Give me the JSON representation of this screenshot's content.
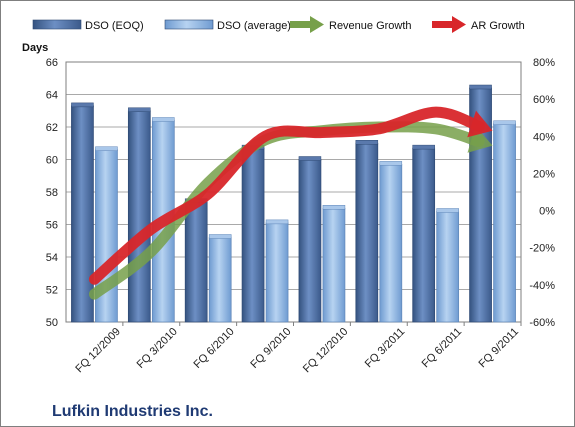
{
  "chart_data": {
    "type": "bar",
    "title": "",
    "footer_title": "Lufkin Industries Inc.",
    "y_left_label": "Days",
    "y_left_ticks": [
      "50",
      "52",
      "54",
      "56",
      "58",
      "60",
      "62",
      "64",
      "66"
    ],
    "y_right_ticks": [
      "-60%",
      "-40%",
      "-20%",
      "0%",
      "20%",
      "40%",
      "60%",
      "80%"
    ],
    "ylim_left": [
      50,
      66
    ],
    "ylim_right": [
      -0.6,
      0.8
    ],
    "categories": [
      "FQ 12/2009",
      "FQ 3/2010",
      "FQ 6/2010",
      "FQ 9/2010",
      "FQ 12/2010",
      "FQ 3/2011",
      "FQ 6/2011",
      "FQ 9/2011"
    ],
    "bar_series": [
      {
        "name": "DSO (EOQ)",
        "values": [
          63.3,
          63.0,
          57.4,
          60.7,
          60.0,
          61.0,
          60.7,
          64.4
        ],
        "color": "#4f6fa2"
      },
      {
        "name": "DSO (average)",
        "values": [
          60.6,
          62.4,
          55.2,
          56.1,
          57.0,
          59.7,
          56.8,
          62.2
        ],
        "color": "#8db4e2"
      }
    ],
    "line_series": [
      {
        "name": "Revenue Growth",
        "values": [
          -0.45,
          -0.22,
          0.15,
          0.38,
          0.43,
          0.45,
          0.44,
          0.35
        ],
        "color": "#77a04a",
        "arrow": true
      },
      {
        "name": "AR Growth",
        "values": [
          -0.37,
          -0.1,
          0.09,
          0.4,
          0.42,
          0.44,
          0.53,
          0.43
        ],
        "color": "#d8262a",
        "arrow": true
      }
    ],
    "grid": true,
    "legend": "top"
  }
}
